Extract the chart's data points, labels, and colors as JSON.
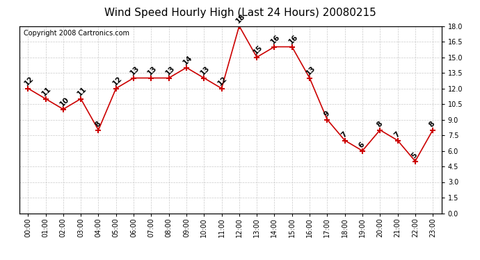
{
  "title": "Wind Speed Hourly High (Last 24 Hours) 20080215",
  "copyright": "Copyright 2008 Cartronics.com",
  "hours": [
    "00:00",
    "01:00",
    "02:00",
    "03:00",
    "04:00",
    "05:00",
    "06:00",
    "07:00",
    "08:00",
    "09:00",
    "10:00",
    "11:00",
    "12:00",
    "13:00",
    "14:00",
    "15:00",
    "16:00",
    "17:00",
    "18:00",
    "19:00",
    "20:00",
    "21:00",
    "22:00",
    "23:00"
  ],
  "values": [
    12,
    11,
    10,
    11,
    8,
    12,
    13,
    13,
    13,
    14,
    13,
    12,
    18,
    15,
    16,
    16,
    13,
    9,
    7,
    6,
    8,
    7,
    5,
    8
  ],
  "line_color": "#cc0000",
  "marker_color": "#cc0000",
  "bg_color": "#ffffff",
  "grid_color": "#bbbbbb",
  "ylim": [
    0.0,
    18.0
  ],
  "yticks": [
    0.0,
    1.5,
    3.0,
    4.5,
    6.0,
    7.5,
    9.0,
    10.5,
    12.0,
    13.5,
    15.0,
    16.5,
    18.0
  ],
  "title_fontsize": 11,
  "label_fontsize": 7,
  "annot_fontsize": 7.5,
  "copyright_fontsize": 7
}
